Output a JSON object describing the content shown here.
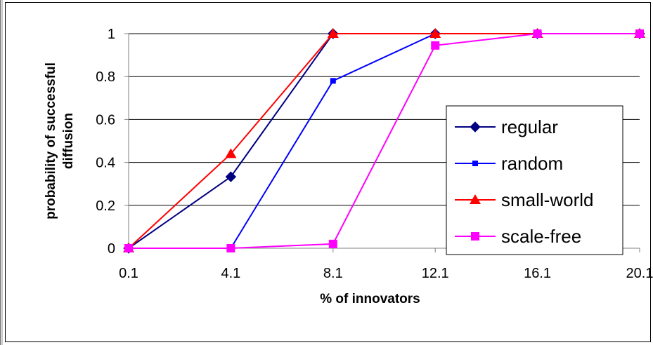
{
  "chart_data": {
    "type": "line",
    "title": "",
    "xlabel": "% of innovators",
    "ylabel": [
      "probability of successful",
      "diffusion"
    ],
    "categories": [
      "0.1",
      "4.1",
      "8.1",
      "12.1",
      "16.1",
      "20.1"
    ],
    "y_ticks": [
      "0",
      "0.2",
      "0.4",
      "0.6",
      "0.8",
      "1"
    ],
    "ylim": [
      0,
      1
    ],
    "grid": "horizontal",
    "legend_position": "right",
    "series": [
      {
        "name": "regular",
        "marker": "diamond",
        "color": "#000080",
        "values": [
          0,
          0.333,
          1,
          1,
          1,
          1
        ]
      },
      {
        "name": "random",
        "marker": "small-square",
        "color": "#0000ff",
        "values": [
          0,
          0,
          0.78,
          1,
          1,
          1
        ]
      },
      {
        "name": "small-world",
        "marker": "triangle",
        "color": "#ff0000",
        "values": [
          0,
          0.44,
          1,
          1,
          1,
          1
        ]
      },
      {
        "name": "scale-free",
        "marker": "square",
        "color": "#ff00ff",
        "values": [
          0,
          0,
          0.02,
          0.945,
          1,
          1
        ]
      }
    ]
  }
}
